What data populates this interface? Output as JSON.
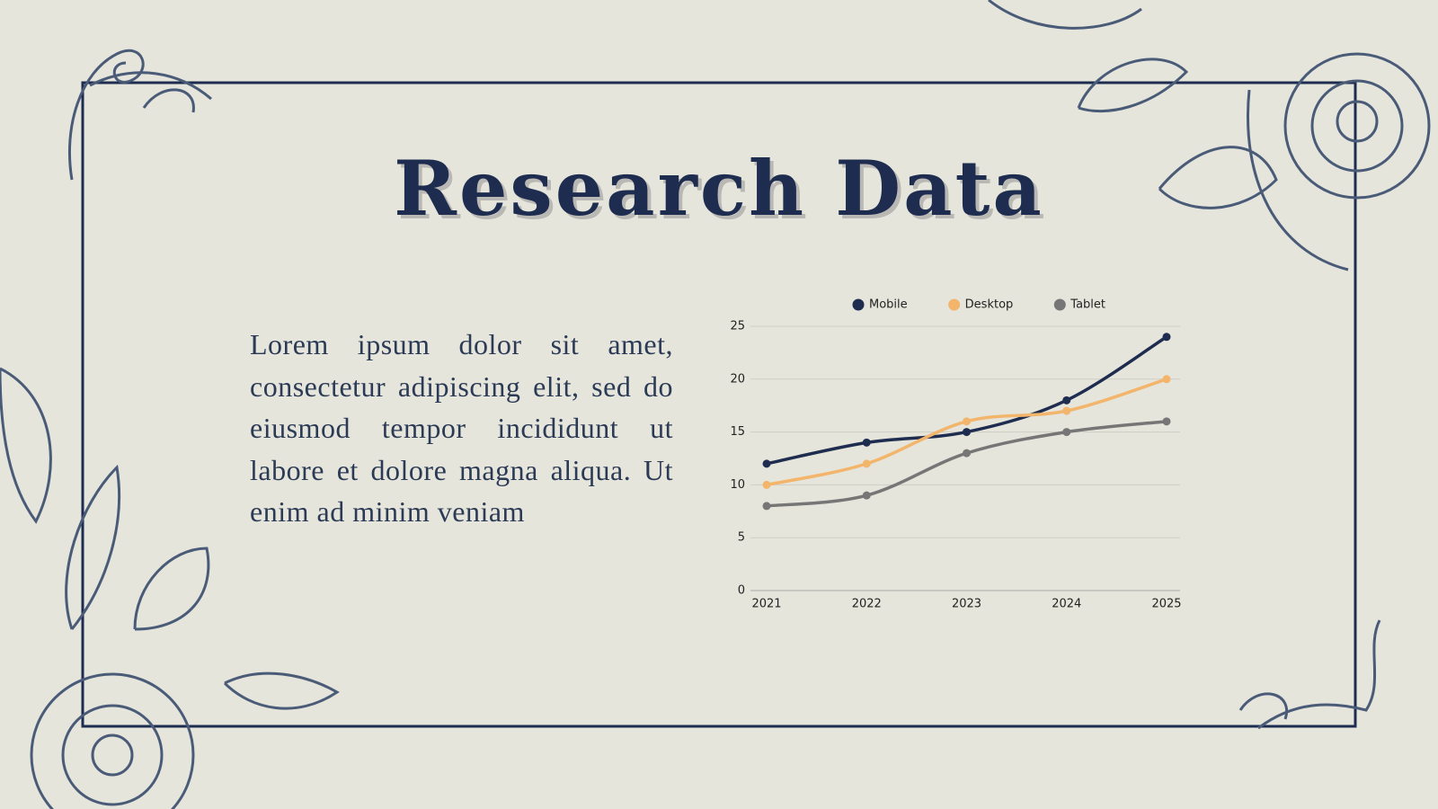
{
  "slide": {
    "title": "Research Data",
    "body": "Lorem ipsum dolor sit amet, consectetur adipiscing elit, sed do eiusmod tempor incididunt ut labore et dolore magna aliqua. Ut enim ad minim veniam"
  },
  "chart_data": {
    "type": "line",
    "categories": [
      "2021",
      "2022",
      "2023",
      "2024",
      "2025"
    ],
    "series": [
      {
        "name": "Mobile",
        "color": "#1e2d4f",
        "values": [
          12,
          14,
          15,
          18,
          24
        ]
      },
      {
        "name": "Desktop",
        "color": "#f2b56b",
        "values": [
          10,
          12,
          16,
          17,
          20
        ]
      },
      {
        "name": "Tablet",
        "color": "#767676",
        "values": [
          8,
          9,
          13,
          15,
          16
        ]
      }
    ],
    "ylim": [
      0,
      25
    ],
    "yticks": [
      0,
      5,
      10,
      15,
      20,
      25
    ],
    "grid": true,
    "legend": "top"
  }
}
